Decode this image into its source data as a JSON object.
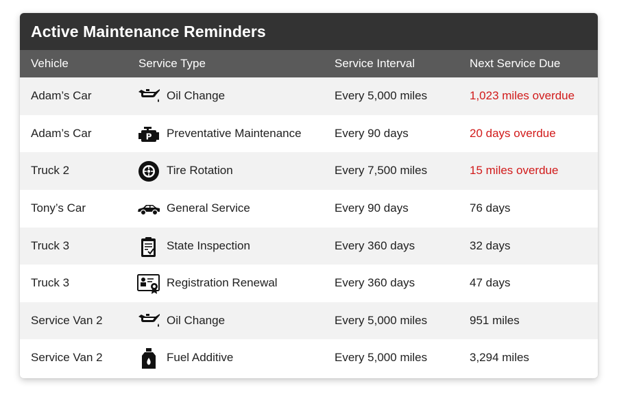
{
  "title": "Active Maintenance Reminders",
  "columns": {
    "vehicle": "Vehicle",
    "service_type": "Service Type",
    "interval": "Service Interval",
    "due": "Next Service Due"
  },
  "colors": {
    "title_bg": "#333333",
    "header_bg": "#5a5a5a",
    "overdue": "#d11a1a",
    "row_alt": "#f2f2f2"
  },
  "rows": [
    {
      "vehicle": "Adam’s Car",
      "icon": "oil-can-icon",
      "service": "Oil Change",
      "interval": "Every 5,000 miles",
      "due": "1,023 miles overdue",
      "overdue": true
    },
    {
      "vehicle": "Adam’s Car",
      "icon": "engine-icon",
      "service": "Preventative Maintenance",
      "interval": "Every 90 days",
      "due": "20 days overdue",
      "overdue": true
    },
    {
      "vehicle": "Truck 2",
      "icon": "tire-icon",
      "service": "Tire Rotation",
      "interval": "Every 7,500 miles",
      "due": "15 miles overdue",
      "overdue": true
    },
    {
      "vehicle": "Tony’s Car",
      "icon": "car-icon",
      "service": "General Service",
      "interval": "Every 90 days",
      "due": "76 days",
      "overdue": false
    },
    {
      "vehicle": "Truck 3",
      "icon": "clipboard-check-icon",
      "service": "State Inspection",
      "interval": "Every 360 days",
      "due": "32 days",
      "overdue": false
    },
    {
      "vehicle": "Truck 3",
      "icon": "registration-card-icon",
      "service": "Registration Renewal",
      "interval": "Every 360 days",
      "due": "47 days",
      "overdue": false
    },
    {
      "vehicle": "Service Van 2",
      "icon": "oil-can-icon",
      "service": "Oil Change",
      "interval": "Every 5,000 miles",
      "due": "951 miles",
      "overdue": false
    },
    {
      "vehicle": "Service Van 2",
      "icon": "fuel-bottle-icon",
      "service": "Fuel Additive",
      "interval": "Every 5,000 miles",
      "due": "3,294 miles",
      "overdue": false
    }
  ]
}
